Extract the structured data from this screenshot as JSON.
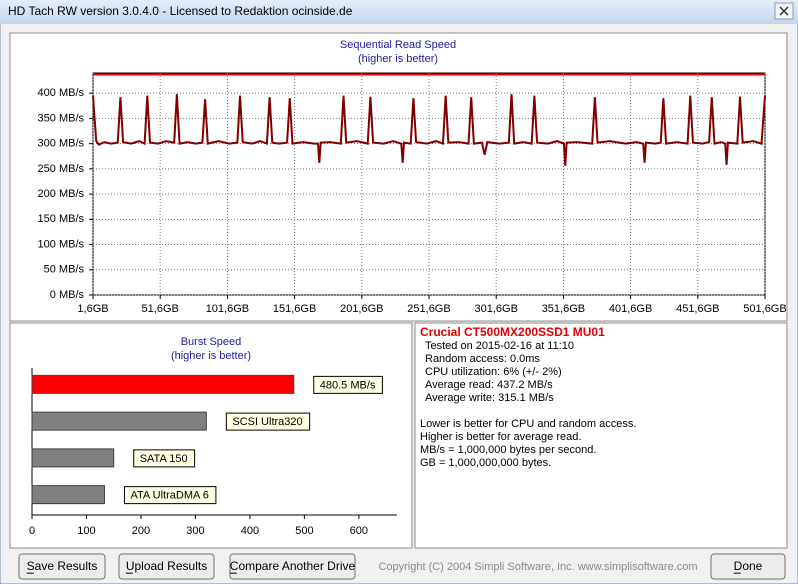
{
  "window": {
    "title": "HD Tach RW version 3.0.4.0  - Licensed to Redaktion ocinside.de"
  },
  "chart_data": [
    {
      "type": "line",
      "title": "Sequential Read Speed",
      "subtitle": "(higher is better)",
      "xlim": [
        1.6,
        501.6
      ],
      "xticks": [
        {
          "value": 1.6,
          "label": "1,6GB"
        },
        {
          "value": 51.6,
          "label": "51,6GB"
        },
        {
          "value": 101.6,
          "label": "101,6GB"
        },
        {
          "value": 151.6,
          "label": "151,6GB"
        },
        {
          "value": 201.6,
          "label": "201,6GB"
        },
        {
          "value": 251.6,
          "label": "251,6GB"
        },
        {
          "value": 301.6,
          "label": "301,6GB"
        },
        {
          "value": 351.6,
          "label": "351,6GB"
        },
        {
          "value": 401.6,
          "label": "401,6GB"
        },
        {
          "value": 451.6,
          "label": "451,6GB"
        },
        {
          "value": 501.6,
          "label": "501,6GB"
        }
      ],
      "ylim": [
        0,
        440
      ],
      "yticks": [
        {
          "value": 0,
          "label": "0 MB/s"
        },
        {
          "value": 50,
          "label": "50 MB/s"
        },
        {
          "value": 100,
          "label": "100 MB/s"
        },
        {
          "value": 150,
          "label": "150 MB/s"
        },
        {
          "value": 200,
          "label": "200 MB/s"
        },
        {
          "value": 250,
          "label": "250 MB/s"
        },
        {
          "value": 300,
          "label": "300 MB/s"
        },
        {
          "value": 350,
          "label": "350 MB/s"
        },
        {
          "value": 400,
          "label": "400 MB/s"
        }
      ],
      "grid": true,
      "series": [
        {
          "color": "#ff0000",
          "x": [
            1.6,
            501.6
          ],
          "values": [
            437,
            437
          ]
        },
        {
          "color": "#800000",
          "x": [
            1.6,
            4,
            6,
            10,
            15,
            20,
            22,
            24,
            30,
            36,
            40,
            42,
            44,
            50,
            56,
            62,
            64,
            66,
            72,
            78,
            83,
            85,
            87,
            95,
            103,
            109,
            111,
            113,
            120,
            126,
            131,
            133,
            135,
            140,
            146,
            148,
            150,
            158,
            166,
            169,
            170,
            171,
            178,
            186,
            188,
            190,
            198,
            206,
            208,
            210,
            218,
            225,
            231,
            232,
            233,
            238,
            240,
            242,
            250,
            257,
            262,
            264,
            266,
            274,
            281,
            283,
            285,
            291,
            293,
            295,
            304,
            311,
            313,
            315,
            322,
            328,
            330,
            332,
            340,
            347,
            352,
            353,
            354,
            362,
            373,
            375,
            377,
            386,
            398,
            406,
            411,
            412,
            413,
            420,
            424,
            426,
            428,
            436,
            444,
            446,
            448,
            455,
            460,
            462,
            464,
            469,
            472,
            473,
            474,
            481,
            483,
            485,
            493,
            499,
            501.6
          ],
          "values": [
            395,
            305,
            298,
            303,
            300,
            302,
            392,
            303,
            300,
            305,
            300,
            395,
            302,
            300,
            305,
            302,
            398,
            300,
            303,
            300,
            302,
            388,
            300,
            305,
            300,
            302,
            395,
            303,
            300,
            305,
            300,
            392,
            302,
            300,
            302,
            390,
            300,
            303,
            300,
            300,
            262,
            302,
            303,
            300,
            395,
            302,
            305,
            300,
            393,
            302,
            300,
            305,
            300,
            262,
            302,
            300,
            390,
            303,
            300,
            305,
            300,
            395,
            302,
            303,
            300,
            392,
            300,
            302,
            278,
            303,
            300,
            302,
            398,
            300,
            303,
            300,
            395,
            302,
            300,
            305,
            300,
            256,
            302,
            303,
            300,
            392,
            302,
            305,
            300,
            303,
            300,
            262,
            302,
            300,
            302,
            390,
            300,
            303,
            300,
            395,
            302,
            300,
            303,
            392,
            300,
            303,
            300,
            258,
            302,
            300,
            393,
            302,
            305,
            300,
            395
          ]
        }
      ]
    },
    {
      "type": "hbar",
      "title": "Burst Speed",
      "subtitle": "(higher is better)",
      "categories": [
        null,
        "SCSI Ultra320",
        "SATA 150",
        "ATA UltraDMA 6"
      ],
      "values": [
        480.5,
        320,
        150,
        133
      ],
      "value_labels": [
        "480.5 MB/s",
        null,
        null,
        null
      ],
      "colors": [
        "#ff0000",
        "#808080",
        "#808080",
        "#808080"
      ],
      "xlim": [
        0,
        670
      ],
      "xticks": [
        0,
        100,
        200,
        300,
        400,
        500,
        600
      ]
    }
  ],
  "info": {
    "drive": "Crucial  CT500MX200SSD1 MU01",
    "lines": [
      "Tested on 2015-02-16 at 11:10",
      "Random access: 0.0ms",
      "CPU utilization: 6% (+/- 2%)",
      "Average read: 437.2 MB/s",
      "Average write: 315.1 MB/s"
    ],
    "notes": [
      "Lower is better for CPU and random access.",
      "Higher is better for average read.",
      "MB/s = 1,000,000 bytes per second.",
      "GB = 1,000,000,000 bytes."
    ]
  },
  "buttons": [
    "Save Results",
    "Upload Results",
    "Compare Another Drive"
  ],
  "footer": "Copyright (C) 2004 Simpli Software, Inc. www.simplisoftware.com",
  "done": "Done"
}
